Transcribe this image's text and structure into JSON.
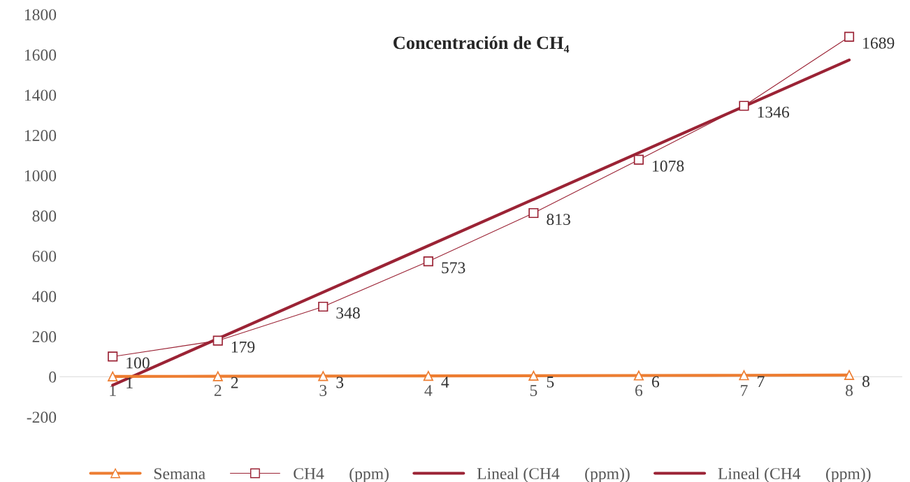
{
  "chart_data": {
    "type": "line",
    "title": "Concentración de CH₄",
    "x": [
      1,
      2,
      3,
      4,
      5,
      6,
      7,
      8
    ],
    "series": [
      {
        "name": "Semana",
        "color": "#ed7d31",
        "marker": "triangle",
        "data_labels": true,
        "values": [
          1,
          2,
          3,
          4,
          5,
          6,
          7,
          8
        ]
      },
      {
        "name": "CH4      (ppm)",
        "color": "#9b2335",
        "marker": "square",
        "data_labels": true,
        "values": [
          100,
          179,
          348,
          573,
          813,
          1078,
          1346,
          1689
        ]
      },
      {
        "name": "Lineal (CH4      (ppm))",
        "color": "#9b2335",
        "x": [
          1,
          8
        ],
        "values": [
          -42,
          1574
        ]
      },
      {
        "name": "Lineal (CH4      (ppm))",
        "color": "#9b2335",
        "values": [
          null,
          null,
          null,
          null,
          null,
          null,
          null,
          null
        ]
      }
    ],
    "xlim": [
      0.5,
      8.5
    ],
    "xticks": [
      1,
      2,
      3,
      4,
      5,
      6,
      7,
      8
    ],
    "ylim": [
      -200,
      1800
    ],
    "yticks": [
      -200,
      0,
      200,
      400,
      600,
      800,
      1000,
      1200,
      1400,
      1600,
      1800
    ],
    "grid": false,
    "legend": "bottom"
  }
}
